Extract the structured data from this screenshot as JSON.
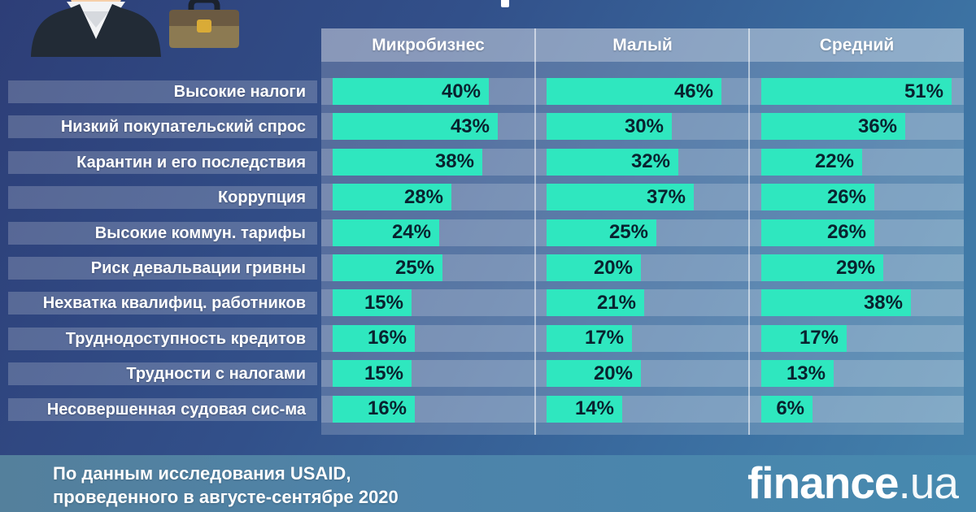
{
  "columns": [
    "Микробизнес",
    "Малый",
    "Средний"
  ],
  "rows": [
    {
      "label": "Высокие налоги",
      "values": [
        40,
        46,
        51
      ],
      "display": [
        "40%",
        "46%",
        "51%"
      ]
    },
    {
      "label": "Низкий покупательский спрос",
      "values": [
        43,
        30,
        36
      ],
      "display": [
        "43%",
        "30%",
        "36%"
      ]
    },
    {
      "label": "Карантин и его последствия",
      "values": [
        38,
        32,
        22
      ],
      "display": [
        "38%",
        "32%",
        "22%"
      ]
    },
    {
      "label": "Коррупция",
      "values": [
        28,
        37,
        26
      ],
      "display": [
        "28%",
        "37%",
        "26%"
      ]
    },
    {
      "label": "Высокие коммун. тарифы",
      "values": [
        24,
        25,
        26
      ],
      "display": [
        "24%",
        "25%",
        "26%"
      ]
    },
    {
      "label": "Риск девальвации гривны",
      "values": [
        25,
        20,
        29
      ],
      "display": [
        "25%",
        "20%",
        "29%"
      ]
    },
    {
      "label": "Нехватка квалифиц. работников",
      "values": [
        15,
        21,
        38
      ],
      "display": [
        "15%",
        "21%",
        "38%"
      ]
    },
    {
      "label": "Труднодоступность кредитов",
      "values": [
        16,
        17,
        17
      ],
      "display": [
        "16%",
        "17%",
        "17%"
      ]
    },
    {
      "label": "Трудности с налогами",
      "values": [
        15,
        20,
        13
      ],
      "display": [
        "15%",
        "20%",
        "13%"
      ]
    },
    {
      "label": "Несовершенная судовая сис-ма",
      "values": [
        16,
        14,
        6
      ],
      "display": [
        "16%",
        "14%",
        "6%"
      ]
    }
  ],
  "footer": {
    "source_line1": "По данным исследования USAID,",
    "source_line2": "проведенного в августе-сентябре 2020",
    "brand": "finance",
    "brand_suffix": ".ua"
  },
  "colors": {
    "bar": "#2fe7bf",
    "bar_text": "#09222f",
    "background_dark": "#2d3e77",
    "background_light": "#4483ac"
  },
  "chart_data": {
    "type": "bar",
    "orientation": "horizontal",
    "categories": [
      "Высокие налоги",
      "Низкий покупательский спрос",
      "Карантин и его последствия",
      "Коррупция",
      "Высокие коммун. тарифы",
      "Риск девальвации гривны",
      "Нехватка квалифиц. работников",
      "Труднодоступность кредитов",
      "Трудности с налогами",
      "Несовершенная судовая сис-ма"
    ],
    "series": [
      {
        "name": "Микробизнес",
        "values": [
          40,
          43,
          38,
          28,
          24,
          25,
          15,
          16,
          15,
          16
        ]
      },
      {
        "name": "Малый",
        "values": [
          46,
          30,
          32,
          37,
          25,
          20,
          21,
          17,
          20,
          14
        ]
      },
      {
        "name": "Средний",
        "values": [
          51,
          36,
          22,
          26,
          26,
          29,
          38,
          17,
          13,
          6
        ]
      }
    ],
    "value_unit": "%",
    "data_labels": true,
    "legend_position": "top",
    "xlim": [
      0,
      57
    ],
    "grid": false,
    "note": "По данным исследования USAID, проведенного в августе-сентябре 2020"
  }
}
